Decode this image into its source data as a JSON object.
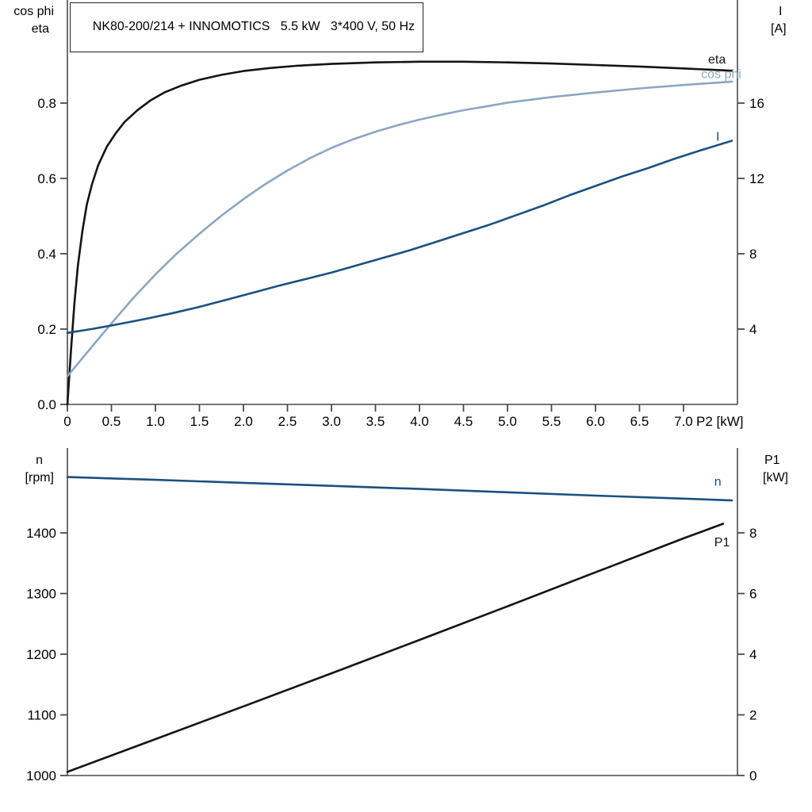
{
  "colors": {
    "black": "#141414",
    "lightblue": "#8ca6c4",
    "darkblue": "#1c5080",
    "axis": "#4a4a4a",
    "text": "#000000"
  },
  "chart_data": [
    {
      "type": "line",
      "title": "NK80-200/214 + INNOMOTICS   5.5 kW   3*400 V, 50 Hz",
      "x_axis": {
        "label": "P2 [kW]",
        "min": 0,
        "max": 7.613,
        "ticks": [
          0,
          0.5,
          1.0,
          1.5,
          2.0,
          2.5,
          3.0,
          3.5,
          4.0,
          4.5,
          5.0,
          5.5,
          6.0,
          6.5,
          7.0
        ],
        "tick_labels": [
          "0",
          "0.5",
          "1.0",
          "1.5",
          "2.0",
          "2.5",
          "3.0",
          "3.5",
          "4.0",
          "4.5",
          "5.0",
          "5.5",
          "6.0",
          "6.5",
          "7.0"
        ]
      },
      "left_axis": {
        "name": [
          "cos phi",
          "eta"
        ],
        "min": 0,
        "max": 1.0737,
        "ticks": [
          0.0,
          0.2,
          0.4,
          0.6,
          0.8
        ],
        "tick_labels": [
          "0.0",
          "0.2",
          "0.4",
          "0.6",
          "0.8"
        ]
      },
      "right_axis": {
        "name": [
          "I",
          "[A]"
        ],
        "min": 0,
        "max": 21.474,
        "ticks": [
          4,
          8,
          12,
          16
        ],
        "tick_labels": [
          "4",
          "8",
          "12",
          "16"
        ]
      },
      "series": [
        {
          "name": "eta",
          "axis": "left_axis",
          "color_key": "black",
          "label": {
            "text": "eta",
            "x": 7.28,
            "y": 0.905
          },
          "points": [
            [
              0,
              0
            ],
            [
              0.04,
              0.14
            ],
            [
              0.08,
              0.27
            ],
            [
              0.12,
              0.37
            ],
            [
              0.17,
              0.46
            ],
            [
              0.22,
              0.53
            ],
            [
              0.28,
              0.585
            ],
            [
              0.35,
              0.635
            ],
            [
              0.45,
              0.685
            ],
            [
              0.55,
              0.72
            ],
            [
              0.65,
              0.75
            ],
            [
              0.8,
              0.782
            ],
            [
              0.95,
              0.808
            ],
            [
              1.1,
              0.828
            ],
            [
              1.3,
              0.847
            ],
            [
              1.5,
              0.862
            ],
            [
              1.75,
              0.875
            ],
            [
              2.0,
              0.885
            ],
            [
              2.3,
              0.893
            ],
            [
              2.6,
              0.899
            ],
            [
              3.0,
              0.904
            ],
            [
              3.5,
              0.908
            ],
            [
              4.0,
              0.91
            ],
            [
              4.5,
              0.91
            ],
            [
              5.0,
              0.908
            ],
            [
              5.5,
              0.905
            ],
            [
              6.0,
              0.901
            ],
            [
              6.5,
              0.897
            ],
            [
              7.0,
              0.892
            ],
            [
              7.55,
              0.886
            ]
          ]
        },
        {
          "name": "cos phi",
          "axis": "left_axis",
          "color_key": "lightblue",
          "label": {
            "text": "cos phi",
            "x": 7.2,
            "y": 0.866
          },
          "points": [
            [
              0,
              0.075
            ],
            [
              0.25,
              0.145
            ],
            [
              0.5,
              0.215
            ],
            [
              0.75,
              0.283
            ],
            [
              1.0,
              0.345
            ],
            [
              1.25,
              0.402
            ],
            [
              1.5,
              0.453
            ],
            [
              1.75,
              0.501
            ],
            [
              2.0,
              0.545
            ],
            [
              2.25,
              0.585
            ],
            [
              2.5,
              0.621
            ],
            [
              2.75,
              0.653
            ],
            [
              3.0,
              0.681
            ],
            [
              3.25,
              0.704
            ],
            [
              3.5,
              0.724
            ],
            [
              3.75,
              0.741
            ],
            [
              4.0,
              0.756
            ],
            [
              4.25,
              0.769
            ],
            [
              4.5,
              0.781
            ],
            [
              4.75,
              0.791
            ],
            [
              5.0,
              0.801
            ],
            [
              5.5,
              0.816
            ],
            [
              6.0,
              0.828
            ],
            [
              6.5,
              0.839
            ],
            [
              7.0,
              0.848
            ],
            [
              7.55,
              0.857
            ]
          ]
        },
        {
          "name": "I",
          "axis": "right_axis",
          "color_key": "darkblue",
          "label": {
            "text": "I",
            "x": 7.37,
            "y": 14.0
          },
          "points": [
            [
              0,
              3.8
            ],
            [
              0.3,
              4.02
            ],
            [
              0.6,
              4.28
            ],
            [
              0.9,
              4.55
            ],
            [
              1.2,
              4.85
            ],
            [
              1.5,
              5.18
            ],
            [
              1.8,
              5.55
            ],
            [
              2.1,
              5.92
            ],
            [
              2.4,
              6.3
            ],
            [
              2.7,
              6.65
            ],
            [
              3.0,
              7.0
            ],
            [
              3.3,
              7.4
            ],
            [
              3.6,
              7.8
            ],
            [
              3.9,
              8.2
            ],
            [
              4.2,
              8.65
            ],
            [
              4.5,
              9.1
            ],
            [
              4.8,
              9.55
            ],
            [
              5.1,
              10.05
            ],
            [
              5.4,
              10.55
            ],
            [
              5.7,
              11.1
            ],
            [
              6.0,
              11.6
            ],
            [
              6.3,
              12.1
            ],
            [
              6.6,
              12.55
            ],
            [
              6.9,
              13.05
            ],
            [
              7.2,
              13.5
            ],
            [
              7.55,
              14.0
            ]
          ]
        }
      ]
    },
    {
      "type": "line",
      "title": "",
      "x_axis": {
        "label": "",
        "min": 0,
        "max": 7.613,
        "ticks": [],
        "tick_labels": []
      },
      "left_axis": {
        "name": [
          "n",
          "[rpm]"
        ],
        "min": 1000,
        "max": 1539.9,
        "ticks": [
          1000,
          1100,
          1200,
          1300,
          1400
        ],
        "tick_labels": [
          "1000",
          "1100",
          "1200",
          "1300",
          "1400"
        ]
      },
      "right_axis": {
        "name": [
          "P1",
          "[kW]"
        ],
        "min": 0,
        "max": 10.797,
        "ticks": [
          0,
          2,
          4,
          6,
          8
        ],
        "tick_labels": [
          "0",
          "2",
          "4",
          "6",
          "8"
        ]
      },
      "series": [
        {
          "name": "n",
          "axis": "left_axis",
          "color_key": "darkblue",
          "label": {
            "text": "n",
            "x": 7.35,
            "y": 1478
          },
          "points": [
            [
              0,
              1492
            ],
            [
              1,
              1487.5
            ],
            [
              2,
              1482.5
            ],
            [
              3,
              1477.5
            ],
            [
              4,
              1472.5
            ],
            [
              5,
              1467
            ],
            [
              6,
              1461.5
            ],
            [
              7,
              1456.5
            ],
            [
              7.55,
              1453.5
            ]
          ]
        },
        {
          "name": "P1",
          "axis": "right_axis",
          "color_key": "black",
          "label": {
            "text": "P1",
            "x": 7.35,
            "y": 7.55
          },
          "points": [
            [
              0,
              0.12
            ],
            [
              1,
              1.2
            ],
            [
              2,
              2.28
            ],
            [
              3,
              3.37
            ],
            [
              4,
              4.47
            ],
            [
              5,
              5.58
            ],
            [
              6,
              6.7
            ],
            [
              7,
              7.82
            ],
            [
              7.45,
              8.3
            ]
          ]
        }
      ]
    }
  ]
}
